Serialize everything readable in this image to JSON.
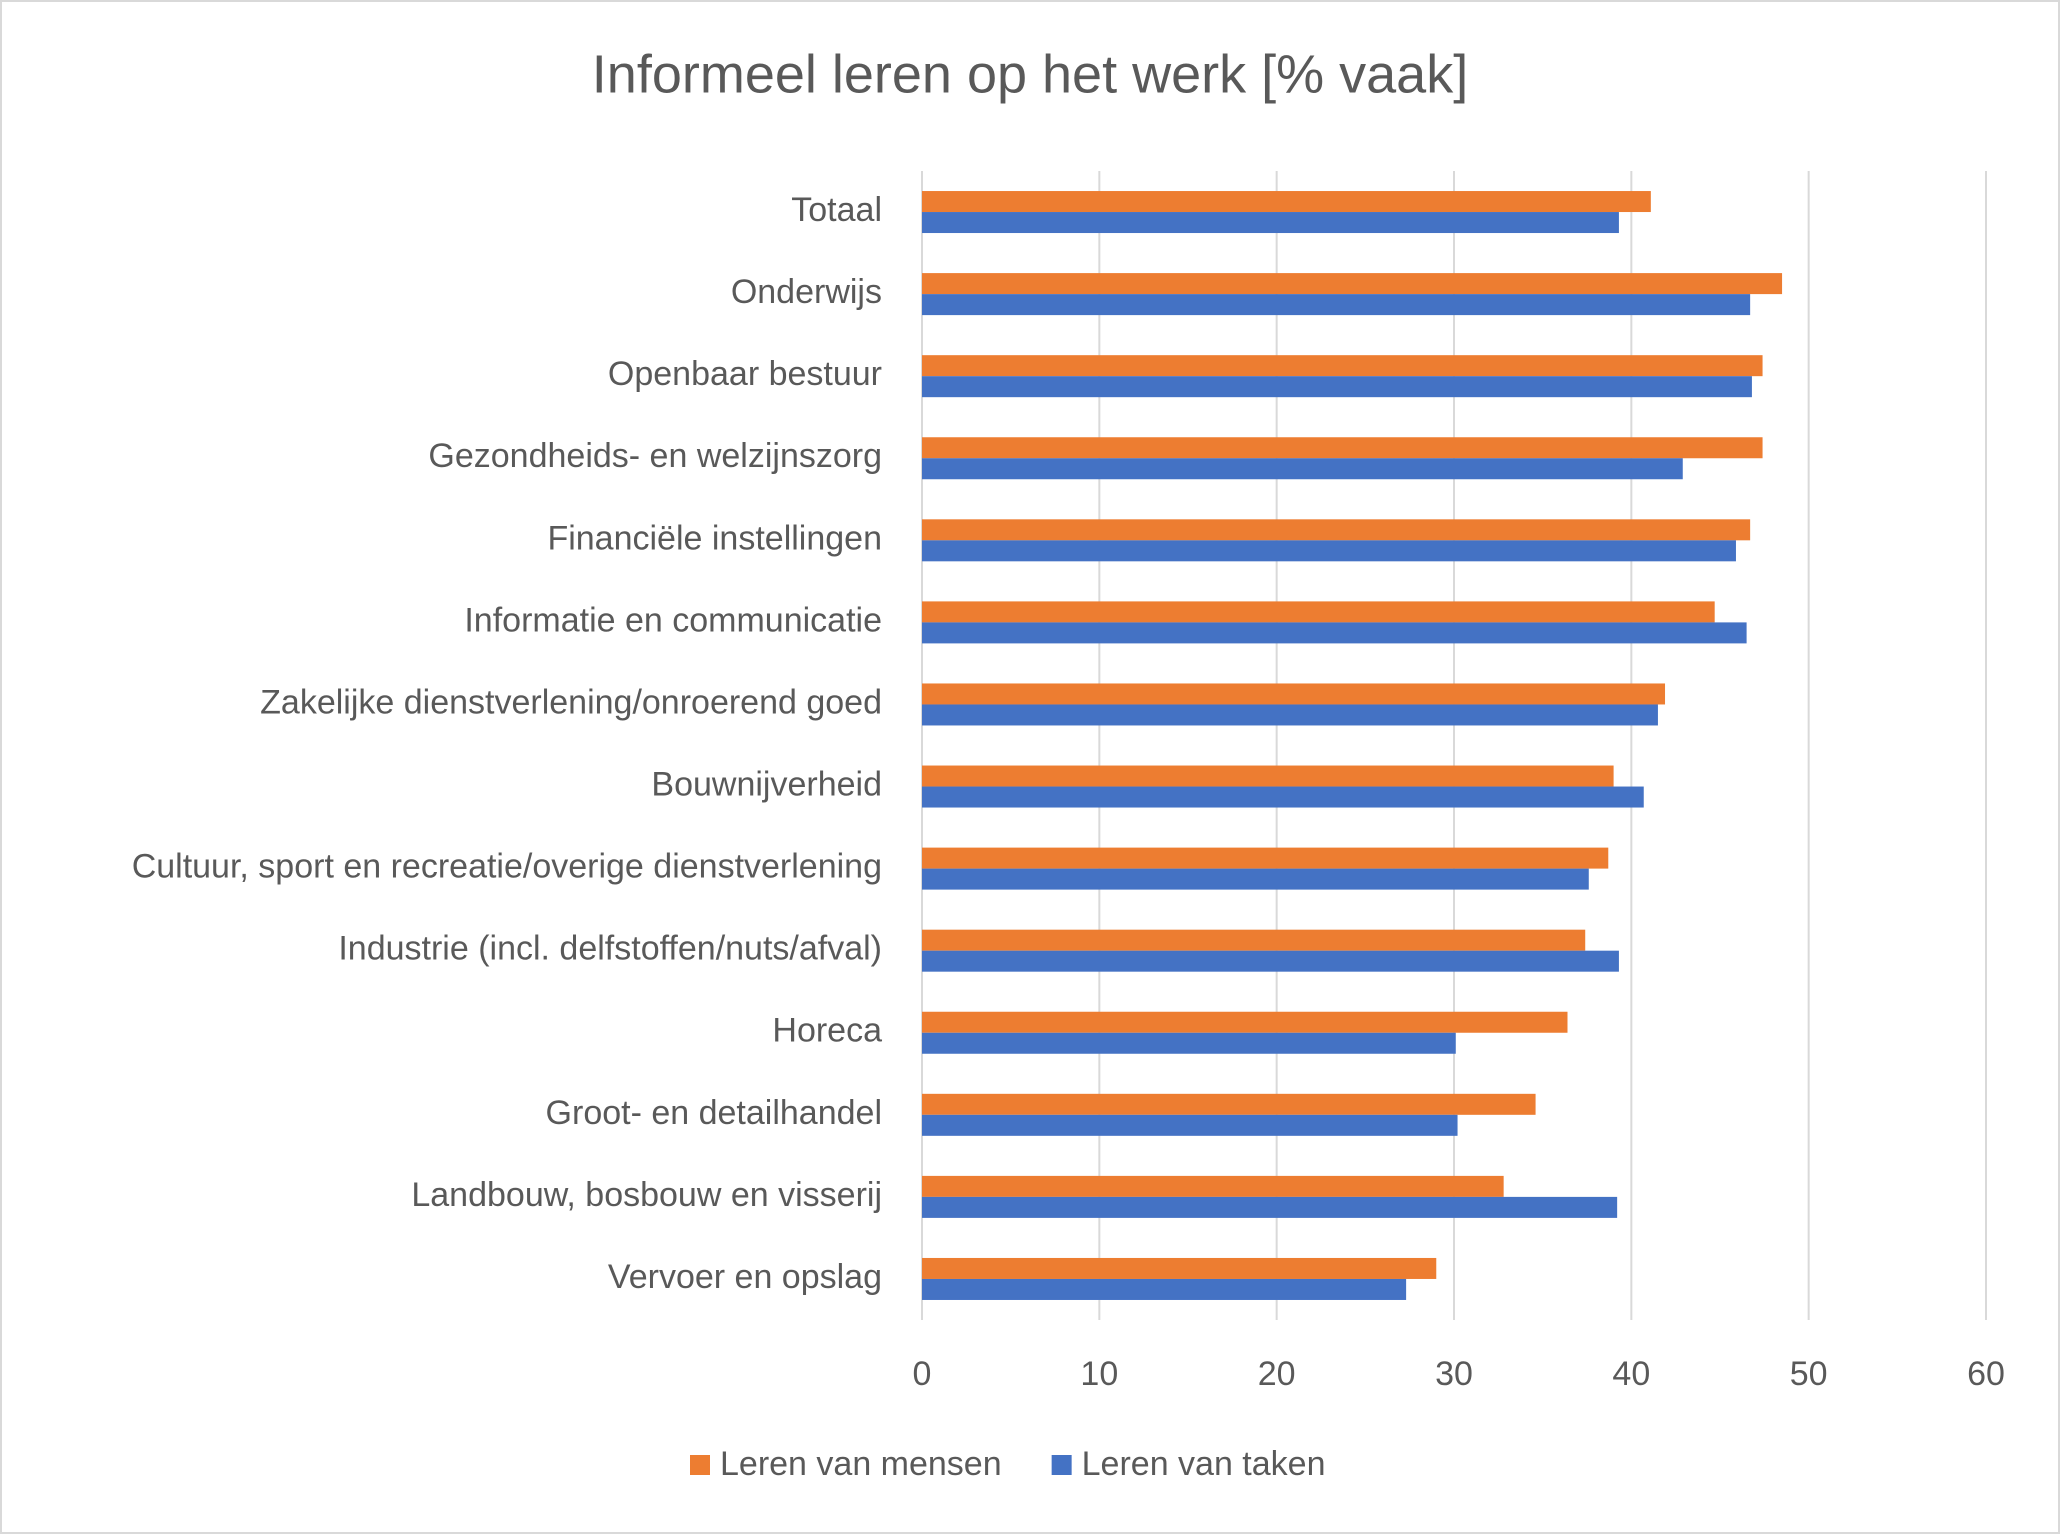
{
  "chart_data": {
    "type": "hbar",
    "title": "Informeel leren op het werk [% vaak]",
    "categories": [
      "Totaal",
      "Onderwijs",
      "Openbaar bestuur",
      "Gezondheids- en welzijnszorg",
      "Financiële instellingen",
      "Informatie en communicatie",
      "Zakelijke dienstverlening/onroerend goed",
      "Bouwnijverheid",
      "Cultuur, sport en recreatie/overige dienstverlening",
      "Industrie (incl. delfstoffen/nuts/afval)",
      "Horeca",
      "Groot- en detailhandel",
      "Landbouw, bosbouw en visserij",
      "Vervoer en opslag"
    ],
    "series": [
      {
        "name": "Leren van mensen",
        "color": "#ed7d31",
        "values": [
          41.1,
          48.5,
          47.4,
          47.4,
          46.7,
          44.7,
          41.9,
          39.0,
          38.7,
          37.4,
          36.4,
          34.6,
          32.8,
          29.0
        ]
      },
      {
        "name": "Leren van taken",
        "color": "#4472c4",
        "values": [
          39.3,
          46.7,
          46.8,
          42.9,
          45.9,
          46.5,
          41.5,
          40.7,
          37.6,
          39.3,
          30.1,
          30.2,
          39.2,
          27.3
        ]
      }
    ],
    "xlim": [
      0,
      60
    ],
    "xticks": [
      0,
      10,
      20,
      30,
      40,
      50,
      60
    ],
    "grid": true,
    "legend": "bottom"
  }
}
